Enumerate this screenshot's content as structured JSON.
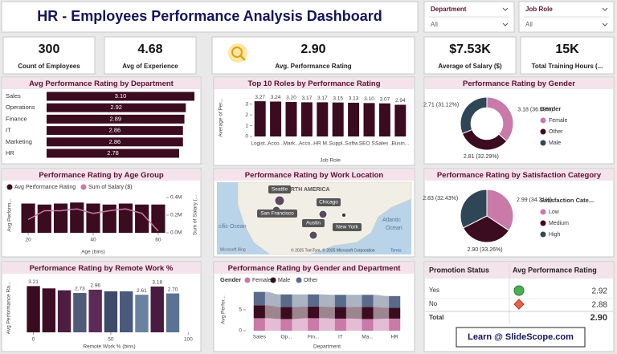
{
  "header": {
    "title": "HR - Employees Performance Analysis Dashboard"
  },
  "slicers": [
    {
      "label": "Department",
      "value": "All"
    },
    {
      "label": "Job Role",
      "value": "All"
    }
  ],
  "kpis": [
    {
      "value": "300",
      "label": "Count of Employees"
    },
    {
      "value": "4.68",
      "label": "Avg of Experience"
    },
    {
      "value": "2.90",
      "label": "Avg. Performance Rating"
    },
    {
      "value": "$7.53K",
      "label": "Average of Salary ($)"
    },
    {
      "value": "15K",
      "label": "Total Training Hours (..."
    }
  ],
  "chart_data": [
    {
      "type": "hbar",
      "title": "Avg Performance Rating by Department",
      "categories": [
        "Sales",
        "Operations",
        "Finance",
        "IT",
        "Marketing",
        "HR"
      ],
      "values": [
        3.1,
        2.92,
        2.89,
        2.86,
        2.86,
        2.78
      ],
      "value_labels": [
        "3.10",
        "2.92",
        "2.89",
        "2.86",
        "2.86",
        "2.78"
      ],
      "color": "#3b0b1f",
      "xlim": [
        0,
        3.1
      ]
    },
    {
      "type": "column",
      "title": "Top 10 Roles by Performance Rating",
      "categories": [
        "Logist...",
        "Acco...",
        "Mark...",
        "Acco...",
        "HR M...",
        "Suppl...",
        "Softw...",
        "SEO S...",
        "Sales ...",
        "Busin..."
      ],
      "values": [
        3.27,
        3.24,
        3.2,
        3.17,
        3.17,
        3.15,
        3.13,
        3.1,
        3.07,
        2.94
      ],
      "value_labels": [
        "3.27",
        "3.24",
        "3.20",
        "3.17",
        "3.17",
        "3.15",
        "3.13",
        "3.10",
        "3.07",
        "2.94"
      ],
      "color": "#3b0b1f",
      "ylim": [
        0,
        3.5
      ],
      "yticks": [
        0,
        1,
        2,
        3
      ],
      "y_label": "Average of Per...",
      "x_label": "Job Role"
    },
    {
      "type": "donut",
      "title": "Performance Rating by Gender",
      "legend_title": "Gender",
      "categories": [
        "Female",
        "Other",
        "Male"
      ],
      "values": [
        3.18,
        2.81,
        2.71
      ],
      "value_labels": [
        "3.18 (36.59%)",
        "2.81 (32.29%)",
        "2.71 (31.12%)"
      ],
      "colors": [
        "#c97aa8",
        "#3b0b1f",
        "#2f4656"
      ]
    },
    {
      "type": "combo",
      "title": "Performance Rating by Age Group",
      "x": [
        20,
        25,
        30,
        35,
        40,
        45,
        50,
        55,
        60
      ],
      "xlim": [
        18,
        62
      ],
      "xticks": [
        20,
        40,
        60
      ],
      "ylim": [
        0,
        3.5
      ],
      "y2lim": [
        0,
        400000
      ],
      "y2ticks": [
        {
          "value": 0,
          "label": "0.0M"
        },
        {
          "value": 200000,
          "label": "0.2M"
        },
        {
          "value": 400000,
          "label": "0.4M"
        }
      ],
      "y_label": "Avg Perform...",
      "y2_label": "Sum of Salary (...",
      "x_label": "Age (bins)",
      "series": [
        {
          "name": "Avg Performance Rating",
          "color": "#3b0b1f",
          "values": [
            2.9,
            2.8,
            2.9,
            3.0,
            2.9,
            2.8,
            2.9,
            2.8,
            2.8
          ]
        },
        {
          "name": "Sum of Salary ($)",
          "color": "#c97aa8",
          "axis": "y2",
          "values": [
            150000,
            250000,
            250000,
            270000,
            220000,
            250000,
            270000,
            220000,
            20000
          ]
        }
      ]
    },
    {
      "type": "pie",
      "title": "Performance Rating by Satisfaction Category",
      "legend_title": "Satisfaction Cate...",
      "categories": [
        "Low",
        "Medium",
        "High"
      ],
      "values": [
        2.99,
        2.9,
        2.83
      ],
      "value_labels": [
        "2.99 (34.31%)",
        "2.90 (33.26%)",
        "2.83 (32.43%)"
      ],
      "colors": [
        "#c97aa8",
        "#3b0b1f",
        "#2f4656"
      ]
    },
    {
      "type": "column",
      "title": "Performance Rating by Remote Work %",
      "x": [
        0,
        10,
        20,
        30,
        40,
        50,
        60,
        70,
        80,
        90
      ],
      "xlim": [
        -6,
        104
      ],
      "xticks": [
        0,
        50,
        100
      ],
      "values": [
        3.21,
        3.05,
        2.92,
        2.73,
        2.96,
        2.85,
        2.85,
        2.61,
        3.18,
        2.7
      ],
      "value_labels": [
        "3.21",
        null,
        null,
        "2.73",
        "2.96",
        null,
        null,
        "2.61",
        "3.18",
        "2.70"
      ],
      "colors": [
        "#3b0b1f",
        "#3d0d26",
        "#4e1d42",
        "#4e5c7a",
        "#5d2a58",
        "#3e4a6a",
        "#4a5a7c",
        "#6a82a2",
        "#4a1a40",
        "#5a7294"
      ],
      "ylim": [
        0,
        3.4
      ],
      "y_label": "Avg Performance Ra...",
      "x_label": "Remote Work % (bins)"
    },
    {
      "type": "ribbon",
      "title": "Performance Rating by Gender and Department",
      "legend_title": "Gender",
      "categories": [
        "Sales",
        "Op...",
        "Fin...",
        "IT",
        "Ma...",
        "HR"
      ],
      "ylim": [
        0,
        10
      ],
      "yticks": [
        0,
        5
      ],
      "y_label": "Avg Perfor...",
      "x_label": "Department",
      "series": [
        {
          "name": "Female",
          "color": "#c97aa8",
          "values": [
            3.0,
            2.8,
            3.0,
            2.9,
            2.8,
            2.9
          ]
        },
        {
          "name": "Male",
          "color": "#3b0b1f",
          "values": [
            3.1,
            2.9,
            2.8,
            2.8,
            2.9,
            2.6
          ]
        },
        {
          "name": "Other",
          "color": "#5a6a8a",
          "values": [
            3.2,
            3.0,
            2.9,
            2.9,
            2.9,
            2.8
          ]
        }
      ]
    }
  ],
  "map": {
    "title": "Performance Rating by Work Location",
    "region": "NORTH AMERICA",
    "cities": [
      "Seattle",
      "San Francisco",
      "Chicago",
      "Austin",
      "New York"
    ],
    "oceans": [
      "cific Ocean",
      "Atlantic",
      "Ocean"
    ],
    "logo": "Microsoft Bing",
    "attribution": "© 2025 TomTom, © 2025 Microsoft Corporation",
    "terms": "Terms"
  },
  "table": {
    "columns": [
      "Promotion Status",
      "Avg Performance Rating"
    ],
    "rows": [
      [
        "Yes",
        "2.92"
      ],
      [
        "No",
        "2.88"
      ]
    ],
    "total": [
      "Total",
      "2.90"
    ]
  },
  "footer": {
    "text": "Learn @ SlideScope.com"
  }
}
